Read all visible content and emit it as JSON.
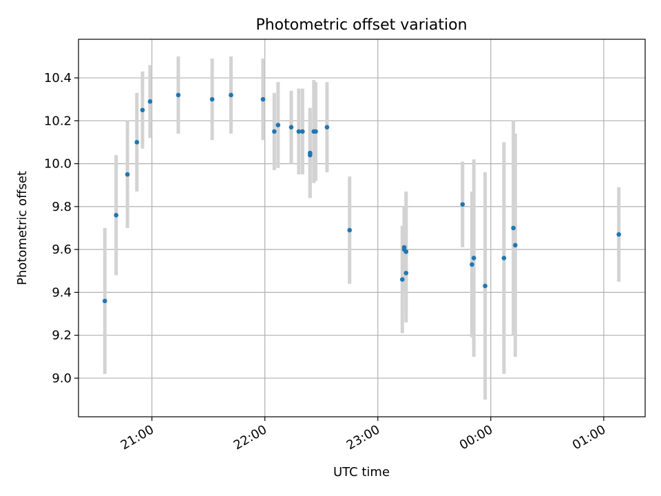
{
  "chart_data": {
    "type": "scatter",
    "title": "Photometric offset variation",
    "xlabel": "UTC time",
    "ylabel": "Photometric offset",
    "x_axis": "time (hours since 20:00 UTC shown as clock time)",
    "xlim": [
      "20:21",
      "01:22"
    ],
    "ylim": [
      8.82,
      10.58
    ],
    "xticks": [
      "21:00",
      "22:00",
      "23:00",
      "00:00",
      "01:00"
    ],
    "yticks": [
      "9.0",
      "9.2",
      "9.4",
      "9.6",
      "9.8",
      "10.0",
      "10.2",
      "10.4"
    ],
    "grid": true,
    "colors": {
      "marker": "#1f77b4",
      "errorbar": "#d3d3d3",
      "grid": "#b0b0b0"
    },
    "points": [
      {
        "x": "20:35",
        "y": 9.36,
        "err": 0.34
      },
      {
        "x": "20:41",
        "y": 9.76,
        "err": 0.28
      },
      {
        "x": "20:47",
        "y": 9.95,
        "err": 0.25
      },
      {
        "x": "20:52",
        "y": 10.1,
        "err": 0.23
      },
      {
        "x": "20:55",
        "y": 10.25,
        "err": 0.18
      },
      {
        "x": "20:59",
        "y": 10.29,
        "err": 0.17
      },
      {
        "x": "21:14",
        "y": 10.32,
        "err": 0.18
      },
      {
        "x": "21:32",
        "y": 10.3,
        "err": 0.19
      },
      {
        "x": "21:42",
        "y": 10.32,
        "err": 0.18
      },
      {
        "x": "21:59",
        "y": 10.3,
        "err": 0.19
      },
      {
        "x": "22:05",
        "y": 10.15,
        "err": 0.18
      },
      {
        "x": "22:07",
        "y": 10.18,
        "err": 0.2
      },
      {
        "x": "22:14",
        "y": 10.17,
        "err": 0.17
      },
      {
        "x": "22:18",
        "y": 10.15,
        "err": 0.2
      },
      {
        "x": "22:20",
        "y": 10.15,
        "err": 0.2
      },
      {
        "x": "22:24",
        "y": 10.04,
        "err": 0.2
      },
      {
        "x": "22:24",
        "y": 10.05,
        "err": 0.21
      },
      {
        "x": "22:26",
        "y": 10.15,
        "err": 0.24
      },
      {
        "x": "22:27",
        "y": 10.15,
        "err": 0.23
      },
      {
        "x": "22:33",
        "y": 10.17,
        "err": 0.21
      },
      {
        "x": "22:45",
        "y": 9.69,
        "err": 0.25
      },
      {
        "x": "23:13",
        "y": 9.46,
        "err": 0.25
      },
      {
        "x": "23:14",
        "y": 9.61,
        "err": 0.19
      },
      {
        "x": "23:14",
        "y": 9.6,
        "err": 0.2
      },
      {
        "x": "23:15",
        "y": 9.59,
        "err": 0.13
      },
      {
        "x": "23:15",
        "y": 9.49,
        "err": 0.23
      },
      {
        "x": "23:15",
        "y": 9.59,
        "err": 0.28
      },
      {
        "x": "23:45",
        "y": 9.81,
        "err": 0.2
      },
      {
        "x": "23:50",
        "y": 9.53,
        "err": 0.34
      },
      {
        "x": "23:51",
        "y": 9.56,
        "err": 0.46
      },
      {
        "x": "23:57",
        "y": 9.43,
        "err": 0.53
      },
      {
        "x": "00:07",
        "y": 9.56,
        "err": 0.54
      },
      {
        "x": "00:12",
        "y": 9.7,
        "err": 0.5
      },
      {
        "x": "00:13",
        "y": 9.62,
        "err": 0.52
      },
      {
        "x": "01:08",
        "y": 9.67,
        "err": 0.22
      }
    ]
  }
}
